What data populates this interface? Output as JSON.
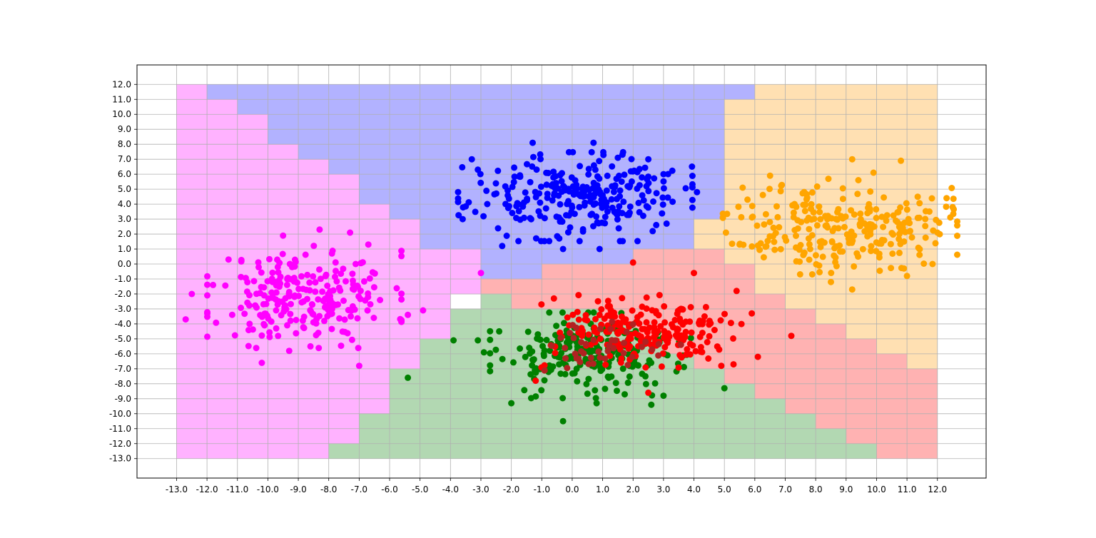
{
  "chart_data": {
    "type": "scatter",
    "title": "",
    "xlabel": "",
    "ylabel": "",
    "xlim": [
      -14.3,
      13.6
    ],
    "ylim": [
      -14.3,
      13.3
    ],
    "grid": true,
    "legend": "none",
    "x_ticks": [
      "-13.0",
      "-12.0",
      "-11.0",
      "-10.0",
      "-9.0",
      "-8.0",
      "-7.0",
      "-6.0",
      "-5.0",
      "-4.0",
      "-3.0",
      "-2.0",
      "-1.0",
      "0.0",
      "1.0",
      "2.0",
      "3.0",
      "4.0",
      "5.0",
      "6.0",
      "7.0",
      "8.0",
      "9.0",
      "10.0",
      "11.0",
      "12.0"
    ],
    "y_ticks": [
      "12.0",
      "11.0",
      "10.0",
      "9.0",
      "8.0",
      "7.0",
      "6.0",
      "5.0",
      "4.0",
      "3.0",
      "2.0",
      "1.0",
      "0.0",
      "-1.0",
      "-2.0",
      "-3.0",
      "-4.0",
      "-5.0",
      "-6.0",
      "-7.0",
      "-8.0",
      "-9.0",
      "-10.0",
      "-11.0",
      "-12.0",
      "-13.0"
    ],
    "regions": [
      {
        "cls": "magenta",
        "color": "#ffb2ff",
        "polygon": [
          [
            -13,
            12
          ],
          [
            -12,
            12
          ],
          [
            -12,
            11
          ],
          [
            -11,
            11
          ],
          [
            -11,
            10
          ],
          [
            -10,
            10
          ],
          [
            -10,
            8
          ],
          [
            -9,
            8
          ],
          [
            -9,
            7
          ],
          [
            -8,
            7
          ],
          [
            -8,
            6
          ],
          [
            -7,
            6
          ],
          [
            -7,
            4
          ],
          [
            -6,
            4
          ],
          [
            -6,
            3
          ],
          [
            -5,
            3
          ],
          [
            -5,
            1
          ],
          [
            -3,
            1
          ],
          [
            -3,
            -2
          ],
          [
            -4,
            -2
          ],
          [
            -4,
            -3
          ],
          [
            -4,
            -5
          ],
          [
            -5,
            -5
          ],
          [
            -5,
            -7
          ],
          [
            -6,
            -7
          ],
          [
            -6,
            -10
          ],
          [
            -7,
            -10
          ],
          [
            -7,
            -12
          ],
          [
            -8,
            -12
          ],
          [
            -8,
            -13
          ],
          [
            -13,
            -13
          ]
        ]
      },
      {
        "cls": "blue",
        "color": "#b2b2ff",
        "polygon": [
          [
            -12,
            12
          ],
          [
            6,
            12
          ],
          [
            6,
            11
          ],
          [
            5,
            11
          ],
          [
            5,
            3
          ],
          [
            4,
            3
          ],
          [
            4,
            1
          ],
          [
            2,
            1
          ],
          [
            2,
            0
          ],
          [
            -1,
            0
          ],
          [
            -1,
            -1
          ],
          [
            -3,
            -1
          ],
          [
            -3,
            1
          ],
          [
            -5,
            1
          ],
          [
            -5,
            3
          ],
          [
            -6,
            3
          ],
          [
            -6,
            4
          ],
          [
            -7,
            4
          ],
          [
            -7,
            6
          ],
          [
            -8,
            6
          ],
          [
            -8,
            7
          ],
          [
            -9,
            7
          ],
          [
            -9,
            8
          ],
          [
            -10,
            8
          ],
          [
            -10,
            10
          ],
          [
            -11,
            10
          ],
          [
            -11,
            11
          ],
          [
            -12,
            11
          ]
        ]
      },
      {
        "cls": "orange",
        "color": "#ffe0b2",
        "polygon": [
          [
            6,
            12
          ],
          [
            12,
            12
          ],
          [
            12,
            -7
          ],
          [
            11,
            -7
          ],
          [
            11,
            -6
          ],
          [
            10,
            -6
          ],
          [
            10,
            -5
          ],
          [
            9,
            -5
          ],
          [
            9,
            -4
          ],
          [
            8,
            -4
          ],
          [
            8,
            -3
          ],
          [
            7,
            -3
          ],
          [
            7,
            -2
          ],
          [
            6,
            -2
          ],
          [
            6,
            0
          ],
          [
            5,
            0
          ],
          [
            5,
            1
          ],
          [
            4,
            1
          ],
          [
            4,
            3
          ],
          [
            5,
            3
          ],
          [
            5,
            11
          ],
          [
            6,
            11
          ]
        ]
      },
      {
        "cls": "red",
        "color": "#ffb2b2",
        "polygon": [
          [
            2,
            1
          ],
          [
            4,
            1
          ],
          [
            5,
            1
          ],
          [
            5,
            0
          ],
          [
            6,
            0
          ],
          [
            6,
            -2
          ],
          [
            7,
            -2
          ],
          [
            7,
            -3
          ],
          [
            8,
            -3
          ],
          [
            8,
            -4
          ],
          [
            9,
            -4
          ],
          [
            9,
            -5
          ],
          [
            10,
            -5
          ],
          [
            10,
            -6
          ],
          [
            11,
            -6
          ],
          [
            11,
            -7
          ],
          [
            12,
            -7
          ],
          [
            12,
            -13
          ],
          [
            10,
            -13
          ],
          [
            10,
            -12
          ],
          [
            9,
            -12
          ],
          [
            9,
            -11
          ],
          [
            8,
            -11
          ],
          [
            8,
            -10
          ],
          [
            7,
            -10
          ],
          [
            7,
            -9
          ],
          [
            6,
            -9
          ],
          [
            6,
            -8
          ],
          [
            5,
            -8
          ],
          [
            5,
            -7
          ],
          [
            4,
            -7
          ],
          [
            4,
            -6
          ],
          [
            3,
            -6
          ],
          [
            3,
            -5
          ],
          [
            2,
            -5
          ],
          [
            2,
            -4
          ],
          [
            1,
            -4
          ],
          [
            1,
            -3
          ],
          [
            -2,
            -3
          ],
          [
            -2,
            -2
          ],
          [
            -3,
            -2
          ],
          [
            -3,
            -1
          ],
          [
            -1,
            -1
          ],
          [
            -1,
            0
          ],
          [
            2,
            0
          ]
        ]
      },
      {
        "cls": "green",
        "color": "#b2d8b2",
        "polygon": [
          [
            -3,
            -2
          ],
          [
            -2,
            -2
          ],
          [
            -2,
            -3
          ],
          [
            1,
            -3
          ],
          [
            1,
            -4
          ],
          [
            2,
            -4
          ],
          [
            2,
            -5
          ],
          [
            3,
            -5
          ],
          [
            3,
            -6
          ],
          [
            4,
            -6
          ],
          [
            4,
            -7
          ],
          [
            5,
            -7
          ],
          [
            5,
            -8
          ],
          [
            6,
            -8
          ],
          [
            6,
            -9
          ],
          [
            7,
            -9
          ],
          [
            7,
            -10
          ],
          [
            8,
            -10
          ],
          [
            8,
            -11
          ],
          [
            9,
            -11
          ],
          [
            9,
            -12
          ],
          [
            10,
            -12
          ],
          [
            10,
            -13
          ],
          [
            -8,
            -13
          ],
          [
            -8,
            -12
          ],
          [
            -7,
            -12
          ],
          [
            -7,
            -10
          ],
          [
            -6,
            -10
          ],
          [
            -6,
            -7
          ],
          [
            -5,
            -7
          ],
          [
            -5,
            -5
          ],
          [
            -4,
            -5
          ],
          [
            -4,
            -3
          ],
          [
            -3,
            -3
          ]
        ]
      }
    ],
    "series": [
      {
        "cls": "magenta",
        "color": "#ff00ff",
        "center": [
          -8.8,
          -2.2
        ],
        "spread": [
          1.45,
          1.55
        ],
        "n": 240,
        "seed": 11,
        "extra": [
          [
            -12.7,
            -3.7
          ],
          [
            -12.5,
            -2.0
          ],
          [
            -10.2,
            -6.6
          ],
          [
            -7.0,
            -6.8
          ],
          [
            -5.4,
            -3.4
          ],
          [
            -4.9,
            -3.1
          ],
          [
            -3.0,
            -0.6
          ],
          [
            -9.5,
            1.9
          ],
          [
            -8.3,
            2.3
          ],
          [
            -7.3,
            2.1
          ],
          [
            -6.7,
            1.3
          ],
          [
            -11.8,
            -1.4
          ],
          [
            -10.6,
            -4.0
          ],
          [
            -8.6,
            -5.5
          ],
          [
            -9.3,
            -5.8
          ]
        ]
      },
      {
        "cls": "blue",
        "color": "#0000ff",
        "center": [
          0.1,
          4.5
        ],
        "spread": [
          1.75,
          1.35
        ],
        "n": 270,
        "seed": 23,
        "extra": [
          [
            -3.6,
            3.0
          ],
          [
            -3.3,
            7.0
          ],
          [
            -2.3,
            1.2
          ],
          [
            -1.3,
            8.1
          ],
          [
            -0.3,
            1.0
          ],
          [
            0.7,
            8.1
          ],
          [
            0.9,
            1.0
          ],
          [
            2.5,
            7.0
          ],
          [
            3.0,
            6.0
          ],
          [
            4.1,
            4.8
          ],
          [
            3.1,
            2.7
          ],
          [
            -3.1,
            6.3
          ],
          [
            1.5,
            7.1
          ]
        ]
      },
      {
        "cls": "orange",
        "color": "#ffa500",
        "center": [
          8.8,
          2.5
        ],
        "spread": [
          1.75,
          1.45
        ],
        "n": 250,
        "seed": 37,
        "extra": [
          [
            12.3,
            4.4
          ],
          [
            12.5,
            3.8
          ],
          [
            12.0,
            2.1
          ],
          [
            9.2,
            7.0
          ],
          [
            10.8,
            6.9
          ],
          [
            5.6,
            5.1
          ],
          [
            5.5,
            1.3
          ],
          [
            9.2,
            -1.7
          ],
          [
            8.5,
            -1.2
          ],
          [
            11.0,
            -0.8
          ],
          [
            6.5,
            5.9
          ],
          [
            9.9,
            6.1
          ],
          [
            10.9,
            -0.3
          ]
        ]
      },
      {
        "cls": "green",
        "color": "#008000",
        "center": [
          0.6,
          -6.1
        ],
        "spread": [
          1.5,
          1.3
        ],
        "n": 240,
        "seed": 53,
        "extra": [
          [
            -3.9,
            -5.1
          ],
          [
            -3.1,
            -5.1
          ],
          [
            -2.9,
            -5.9
          ],
          [
            -5.4,
            -7.6
          ],
          [
            -0.3,
            -10.5
          ],
          [
            -2.0,
            -9.3
          ],
          [
            5.0,
            -8.3
          ],
          [
            2.6,
            -9.4
          ],
          [
            0.8,
            -9.3
          ],
          [
            3.0,
            -8.8
          ],
          [
            -2.4,
            -4.5
          ]
        ]
      },
      {
        "cls": "red",
        "color": "#ff0000",
        "center": [
          2.4,
          -4.5
        ],
        "spread": [
          1.55,
          1.1
        ],
        "n": 220,
        "seed": 71,
        "extra": [
          [
            7.2,
            -4.8
          ],
          [
            5.9,
            -3.3
          ],
          [
            4.0,
            -0.6
          ],
          [
            2.0,
            0.1
          ],
          [
            5.4,
            -1.8
          ],
          [
            5.3,
            -6.7
          ],
          [
            4.9,
            -6.8
          ],
          [
            6.1,
            -6.2
          ],
          [
            2.5,
            -8.6
          ],
          [
            -1.2,
            -7.8
          ],
          [
            -0.6,
            -2.3
          ]
        ]
      },
      {
        "cls": "darkred",
        "color": "#b22222",
        "center": [
          1.2,
          -5.6
        ],
        "spread": [
          1.2,
          0.9
        ],
        "n": 45,
        "seed": 89,
        "extra": []
      }
    ]
  }
}
